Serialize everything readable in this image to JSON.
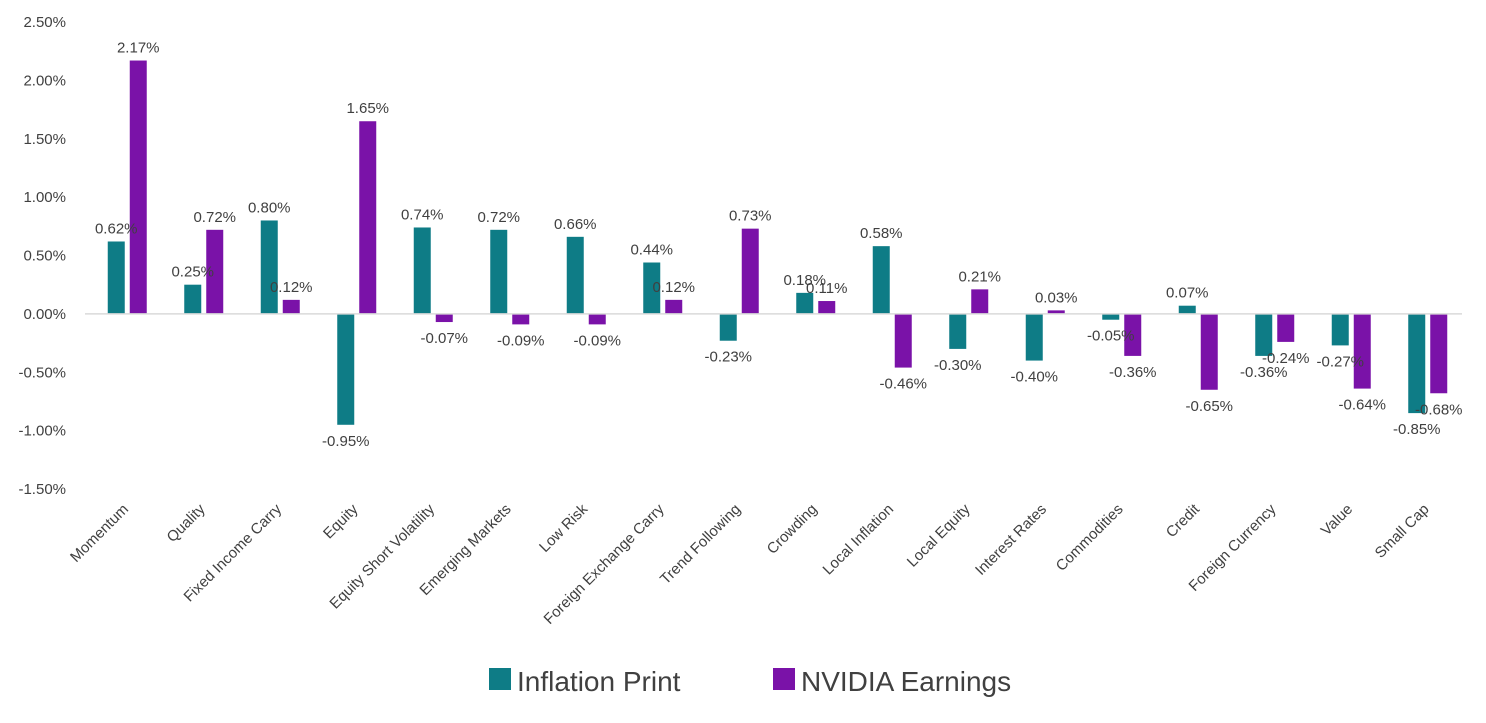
{
  "chart_data": {
    "type": "bar",
    "title": "",
    "xlabel": "",
    "ylabel": "",
    "ylim": [
      -1.5,
      2.5
    ],
    "yticks": [
      "2.50%",
      "2.00%",
      "1.50%",
      "1.00%",
      "0.50%",
      "0.00%",
      "-0.50%",
      "-1.00%",
      "-1.50%"
    ],
    "ytick_values": [
      2.5,
      2.0,
      1.5,
      1.0,
      0.5,
      0.0,
      -0.5,
      -1.0,
      -1.5
    ],
    "legend_position": "bottom",
    "categories": [
      "Momentum",
      "Quality",
      "Fixed Income Carry",
      "Equity",
      "Equity Short Volatility",
      "Emerging Markets",
      "Low Risk",
      "Foreign Exchange Carry",
      "Trend Following",
      "Crowding",
      "Local Inflation",
      "Local Equity",
      "Interest Rates",
      "Commodities",
      "Credit",
      "Foreign Currency",
      "Value",
      "Small Cap"
    ],
    "series": [
      {
        "name": "Inflation Print",
        "color": "#0E7C86",
        "values": [
          0.62,
          0.25,
          0.8,
          -0.95,
          0.74,
          0.72,
          0.66,
          0.44,
          -0.23,
          0.18,
          0.58,
          -0.3,
          -0.4,
          -0.05,
          0.07,
          -0.36,
          -0.27,
          -0.85
        ],
        "labels": [
          "0.62%",
          "0.25%",
          "0.80%",
          "-0.95%",
          "0.74%",
          "0.72%",
          "0.66%",
          "0.44%",
          "-0.23%",
          "0.18%",
          "0.58%",
          "-0.30%",
          "-0.40%",
          "-0.05%",
          "0.07%",
          "-0.36%",
          "-0.27%",
          "-0.85%"
        ]
      },
      {
        "name": "NVIDIA Earnings",
        "color": "#7A12A8",
        "values": [
          2.17,
          0.72,
          0.12,
          1.65,
          -0.07,
          -0.09,
          -0.09,
          0.12,
          0.73,
          0.11,
          -0.46,
          0.21,
          0.03,
          -0.36,
          -0.65,
          -0.24,
          -0.64,
          -0.68
        ],
        "labels": [
          "2.17%",
          "0.72%",
          "0.12%",
          "1.65%",
          "-0.07%",
          "-0.09%",
          "-0.09%",
          "0.12%",
          "0.73%",
          "0.11%",
          "-0.46%",
          "0.21%",
          "0.03%",
          "-0.36%",
          "-0.65%",
          "-0.24%",
          "-0.64%",
          "-0.68%"
        ]
      }
    ]
  }
}
